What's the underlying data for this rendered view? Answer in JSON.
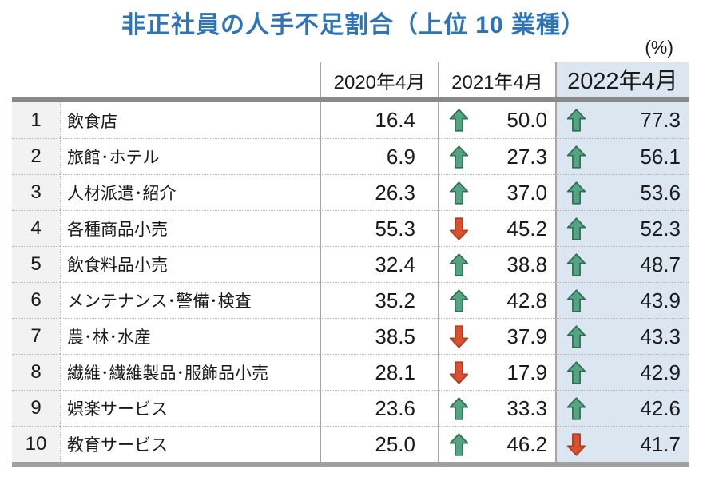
{
  "title": "非正社員の人手不足割合（上位 10 業種）",
  "unit_label": "(%)",
  "colors": {
    "title_blue": "#2e75b6",
    "highlight_column_bg": "#dce6f1",
    "rank_column_bg": "#f2f2f2",
    "up_arrow_fill": "#55a383",
    "up_arrow_border": "#2b6e51",
    "down_arrow_fill": "#d8502f",
    "down_arrow_border": "#a93b20"
  },
  "chart_data": {
    "type": "table",
    "title": "非正社員の人手不足割合（上位 10 業種）",
    "unit": "%",
    "columns": [
      "2020年4月",
      "2021年4月",
      "2022年4月"
    ],
    "highlighted_column": "2022年4月",
    "rows": [
      {
        "rank": "1",
        "industry": "飲食店",
        "v2020": "16.4",
        "trend2021": "up",
        "v2021": "50.0",
        "trend2022": "up",
        "v2022": "77.3"
      },
      {
        "rank": "2",
        "industry": "旅館･ホテル",
        "v2020": "6.9",
        "trend2021": "up",
        "v2021": "27.3",
        "trend2022": "up",
        "v2022": "56.1"
      },
      {
        "rank": "3",
        "industry": "人材派遣･紹介",
        "v2020": "26.3",
        "trend2021": "up",
        "v2021": "37.0",
        "trend2022": "up",
        "v2022": "53.6"
      },
      {
        "rank": "4",
        "industry": "各種商品小売",
        "v2020": "55.3",
        "trend2021": "down",
        "v2021": "45.2",
        "trend2022": "up",
        "v2022": "52.3"
      },
      {
        "rank": "5",
        "industry": "飲食料品小売",
        "v2020": "32.4",
        "trend2021": "up",
        "v2021": "38.8",
        "trend2022": "up",
        "v2022": "48.7"
      },
      {
        "rank": "6",
        "industry": "メンテナンス･警備･検査",
        "v2020": "35.2",
        "trend2021": "up",
        "v2021": "42.8",
        "trend2022": "up",
        "v2022": "43.9"
      },
      {
        "rank": "7",
        "industry": "農･林･水産",
        "v2020": "38.5",
        "trend2021": "down",
        "v2021": "37.9",
        "trend2022": "up",
        "v2022": "43.3"
      },
      {
        "rank": "8",
        "industry": "繊維･繊維製品･服飾品小売",
        "v2020": "28.1",
        "trend2021": "down",
        "v2021": "17.9",
        "trend2022": "up",
        "v2022": "42.9"
      },
      {
        "rank": "9",
        "industry": "娯楽サービス",
        "v2020": "23.6",
        "trend2021": "up",
        "v2021": "33.3",
        "trend2022": "up",
        "v2022": "42.6"
      },
      {
        "rank": "10",
        "industry": "教育サービス",
        "v2020": "25.0",
        "trend2021": "up",
        "v2021": "46.2",
        "trend2022": "down",
        "v2022": "41.7"
      }
    ]
  }
}
